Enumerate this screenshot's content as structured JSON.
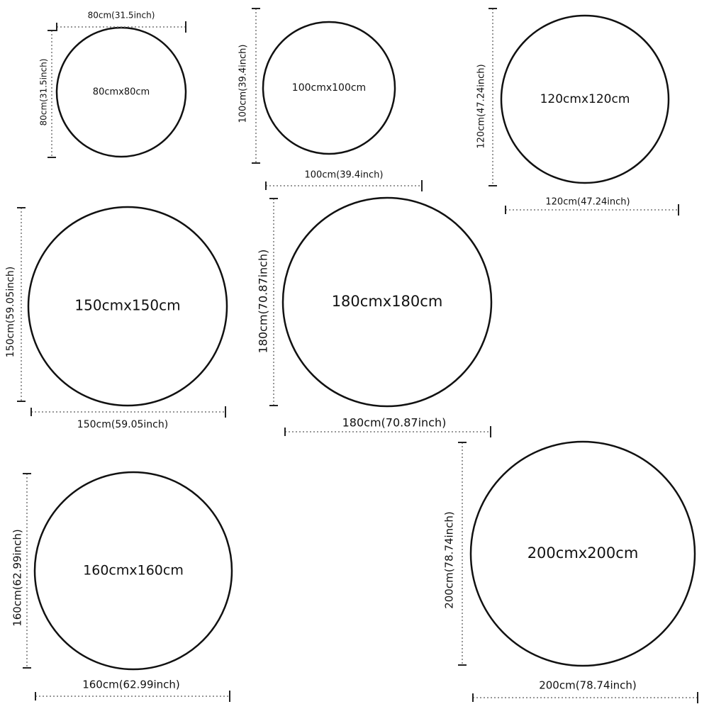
{
  "sizes": [
    {
      "label": "80cmx80cm",
      "width_label": "80cm(31.5inch)",
      "height_label": "80cm(31.5inch)"
    },
    {
      "label": "100cmx100cm",
      "width_label": "100cm(39.4inch)",
      "height_label": "100cm(39.4inch)"
    },
    {
      "label": "120cmx120cm",
      "width_label": "120cm(47.24inch)",
      "height_label": "120cm(47.24inch)"
    },
    {
      "label": "150cmx150cm",
      "width_label": "150cm(59.05inch)",
      "height_label": "150cm(59.05inch)"
    },
    {
      "label": "180cmx180cm",
      "width_label": "180cm(70.87inch)",
      "height_label": "180cm(70.87inch)"
    },
    {
      "label": "160cmx160cm",
      "width_label": "160cm(62.99inch)",
      "height_label": "160cm(62.99inch)"
    },
    {
      "label": "200cmx200cm",
      "width_label": "200cm(78.74inch)",
      "height_label": "200cm(78.74inch)"
    }
  ]
}
